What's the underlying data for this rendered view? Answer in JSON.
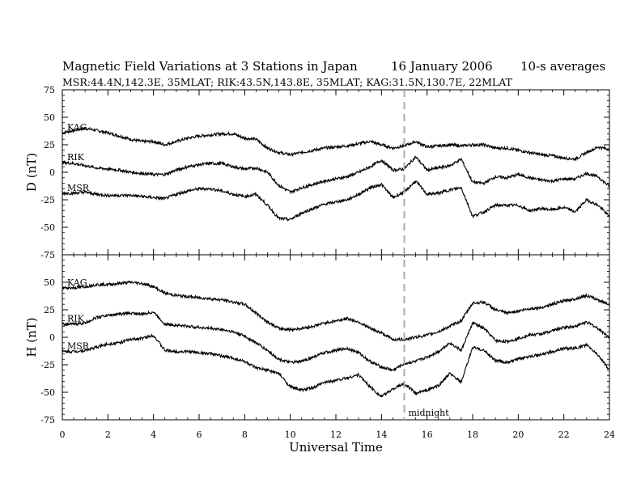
{
  "header": {
    "title": "Magnetic Field Variations at 3 Stations in Japan",
    "date": "16 January 2006",
    "averaging": "10-s averages",
    "stations_line": "MSR:44.4N,142.3E, 35MLAT;  RIK:43.5N,143.8E, 35MLAT;  KAG:31.5N,130.7E, 22MLAT"
  },
  "chart_data": {
    "type": "line",
    "xlabel": "Universal Time",
    "xlim": [
      0,
      24
    ],
    "x_ticks": [
      0,
      2,
      4,
      6,
      8,
      10,
      12,
      14,
      16,
      18,
      20,
      22,
      24
    ],
    "grid": false,
    "marker": {
      "x": 15,
      "label": "midnight",
      "style": "dashed",
      "color": "#aaaaaa"
    },
    "panels": [
      {
        "id": "D",
        "ylabel": "D (nT)",
        "ylim": [
          -75,
          75
        ],
        "y_ticks": [
          75,
          50,
          25,
          0,
          -25,
          -50,
          -75
        ],
        "series": [
          {
            "name": "KAG",
            "x": [
              0,
              0.5,
              1,
              1.5,
              2,
              2.5,
              3,
              3.5,
              4,
              4.5,
              5,
              5.5,
              6,
              6.5,
              7,
              7.5,
              8,
              8.5,
              9,
              9.5,
              10,
              10.5,
              11,
              11.5,
              12,
              12.5,
              13,
              13.5,
              14,
              14.5,
              15,
              15.5,
              16,
              16.5,
              17,
              17.5,
              18,
              18.5,
              19,
              19.5,
              20,
              20.5,
              21,
              21.5,
              22,
              22.5,
              23,
              23.5,
              24
            ],
            "y": [
              36,
              38,
              40,
              38,
              36,
              33,
              30,
              28,
              28,
              25,
              28,
              31,
              33,
              34,
              35,
              35,
              31,
              30,
              22,
              18,
              16,
              18,
              20,
              22,
              23,
              24,
              26,
              28,
              25,
              22,
              24,
              28,
              23,
              24,
              25,
              24,
              25,
              25,
              22,
              22,
              20,
              18,
              16,
              15,
              13,
              12,
              18,
              23,
              21
            ]
          },
          {
            "name": "RIK",
            "x": [
              0,
              0.5,
              1,
              1.5,
              2,
              2.5,
              3,
              3.5,
              4,
              4.5,
              5,
              5.5,
              6,
              6.5,
              7,
              7.5,
              8,
              8.5,
              9,
              9.5,
              10,
              10.5,
              11,
              11.5,
              12,
              12.5,
              13,
              13.5,
              14,
              14.5,
              15,
              15.5,
              16,
              16.5,
              17,
              17.5,
              18,
              18.5,
              19,
              19.5,
              20,
              20.5,
              21,
              21.5,
              22,
              22.5,
              23,
              23.5,
              24
            ],
            "y": [
              9,
              8,
              6,
              4,
              3,
              2,
              0,
              -1,
              -2,
              -2,
              2,
              5,
              7,
              8,
              8,
              5,
              3,
              4,
              0,
              -12,
              -18,
              -14,
              -11,
              -8,
              -6,
              -4,
              0,
              5,
              11,
              2,
              3,
              14,
              2,
              4,
              6,
              12,
              -9,
              -10,
              -4,
              -5,
              -2,
              -5,
              -7,
              -8,
              -6,
              -6,
              -1,
              -4,
              -13
            ]
          },
          {
            "name": "MSR",
            "x": [
              0,
              0.5,
              1,
              1.5,
              2,
              2.5,
              3,
              3.5,
              4,
              4.5,
              5,
              5.5,
              6,
              6.5,
              7,
              7.5,
              8,
              8.5,
              9,
              9.5,
              10,
              10.5,
              11,
              11.5,
              12,
              12.5,
              13,
              13.5,
              14,
              14.5,
              15,
              15.5,
              16,
              16.5,
              17,
              17.5,
              18,
              18.5,
              19,
              19.5,
              20,
              20.5,
              21,
              21.5,
              22,
              22.5,
              23,
              23.5,
              24
            ],
            "y": [
              -19,
              -19,
              -18,
              -20,
              -21,
              -21,
              -21,
              -22,
              -23,
              -24,
              -20,
              -17,
              -15,
              -15,
              -17,
              -20,
              -22,
              -20,
              -30,
              -42,
              -43,
              -37,
              -33,
              -29,
              -27,
              -25,
              -20,
              -14,
              -11,
              -23,
              -18,
              -8,
              -20,
              -19,
              -16,
              -14,
              -40,
              -36,
              -30,
              -30,
              -30,
              -35,
              -33,
              -34,
              -32,
              -36,
              -25,
              -30,
              -40
            ]
          }
        ]
      },
      {
        "id": "H",
        "ylabel": "H (nT)",
        "ylim": [
          -75,
          75
        ],
        "y_ticks": [
          75,
          50,
          25,
          0,
          -25,
          -50,
          -75
        ],
        "series": [
          {
            "name": "KAG",
            "x": [
              0,
              0.5,
              1,
              1.5,
              2,
              2.5,
              3,
              3.5,
              4,
              4.5,
              5,
              5.5,
              6,
              6.5,
              7,
              7.5,
              8,
              8.5,
              9,
              9.5,
              10,
              10.5,
              11,
              11.5,
              12,
              12.5,
              13,
              13.5,
              14,
              14.5,
              15,
              15.5,
              16,
              16.5,
              17,
              17.5,
              18,
              18.5,
              19,
              19.5,
              20,
              20.5,
              21,
              21.5,
              22,
              22.5,
              23,
              23.5,
              24
            ],
            "y": [
              45,
              45,
              46,
              48,
              48,
              49,
              50,
              49,
              46,
              40,
              38,
              37,
              36,
              35,
              34,
              32,
              30,
              22,
              14,
              8,
              7,
              8,
              10,
              13,
              15,
              17,
              14,
              8,
              4,
              -2,
              -2,
              0,
              2,
              5,
              10,
              15,
              31,
              32,
              25,
              22,
              24,
              26,
              27,
              30,
              33,
              35,
              38,
              34,
              30
            ]
          },
          {
            "name": "RIK",
            "x": [
              0,
              0.5,
              1,
              1.5,
              2,
              2.5,
              3,
              3.5,
              4,
              4.5,
              5,
              5.5,
              6,
              6.5,
              7,
              7.5,
              8,
              8.5,
              9,
              9.5,
              10,
              10.5,
              11,
              11.5,
              12,
              12.5,
              13,
              13.5,
              14,
              14.5,
              15,
              15.5,
              16,
              16.5,
              17,
              17.5,
              18,
              18.5,
              19,
              19.5,
              20,
              20.5,
              21,
              21.5,
              22,
              22.5,
              23,
              23.5,
              24
            ],
            "y": [
              12,
              12,
              13,
              18,
              20,
              21,
              22,
              21,
              23,
              12,
              11,
              10,
              9,
              8,
              7,
              5,
              1,
              -5,
              -12,
              -20,
              -23,
              -22,
              -18,
              -14,
              -12,
              -10,
              -14,
              -22,
              -27,
              -30,
              -24,
              -22,
              -18,
              -13,
              -5,
              -12,
              13,
              8,
              -3,
              -4,
              -1,
              2,
              3,
              6,
              9,
              10,
              14,
              8,
              0
            ]
          },
          {
            "name": "MSR",
            "x": [
              0,
              0.5,
              1,
              1.5,
              2,
              2.5,
              3,
              3.5,
              4,
              4.5,
              5,
              5.5,
              6,
              6.5,
              7,
              7.5,
              8,
              8.5,
              9,
              9.5,
              10,
              10.5,
              11,
              11.5,
              12,
              12.5,
              13,
              13.5,
              14,
              14.5,
              15,
              15.5,
              16,
              16.5,
              17,
              17.5,
              18,
              18.5,
              19,
              19.5,
              20,
              20.5,
              21,
              21.5,
              22,
              22.5,
              23,
              23.5,
              24
            ],
            "y": [
              -13,
              -13,
              -12,
              -9,
              -6,
              -5,
              -2,
              -1,
              2,
              -12,
              -13,
              -13,
              -14,
              -15,
              -17,
              -19,
              -22,
              -28,
              -30,
              -33,
              -45,
              -48,
              -46,
              -41,
              -39,
              -37,
              -34,
              -45,
              -54,
              -47,
              -42,
              -51,
              -48,
              -44,
              -33,
              -41,
              -9,
              -12,
              -21,
              -23,
              -20,
              -17,
              -16,
              -13,
              -10,
              -10,
              -7,
              -16,
              -30
            ]
          }
        ]
      }
    ]
  }
}
